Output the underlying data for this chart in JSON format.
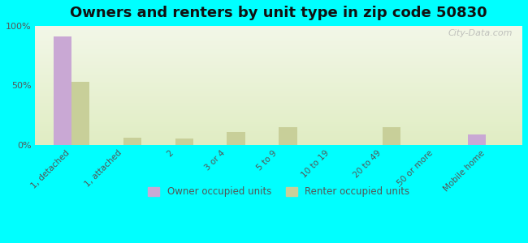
{
  "title": "Owners and renters by unit type in zip code 50830",
  "categories": [
    "1, detached",
    "1, attached",
    "2",
    "3 or 4",
    "5 to 9",
    "10 to 19",
    "20 to 49",
    "50 or more",
    "Mobile home"
  ],
  "owner_values": [
    91,
    0,
    0,
    0,
    0,
    0,
    0,
    0,
    9
  ],
  "renter_values": [
    53,
    6,
    5,
    11,
    15,
    0,
    15,
    0,
    0
  ],
  "owner_color": "#c9a8d4",
  "renter_color": "#c8cf99",
  "background_color": "#00ffff",
  "plot_bg_top": "#f0f5e0",
  "plot_bg_bottom": "#e8f0d0",
  "ylim": [
    0,
    100
  ],
  "yticks": [
    0,
    50,
    100
  ],
  "ytick_labels": [
    "0%",
    "50%",
    "100%"
  ],
  "legend_owner": "Owner occupied units",
  "legend_renter": "Renter occupied units",
  "watermark": "City-Data.com"
}
